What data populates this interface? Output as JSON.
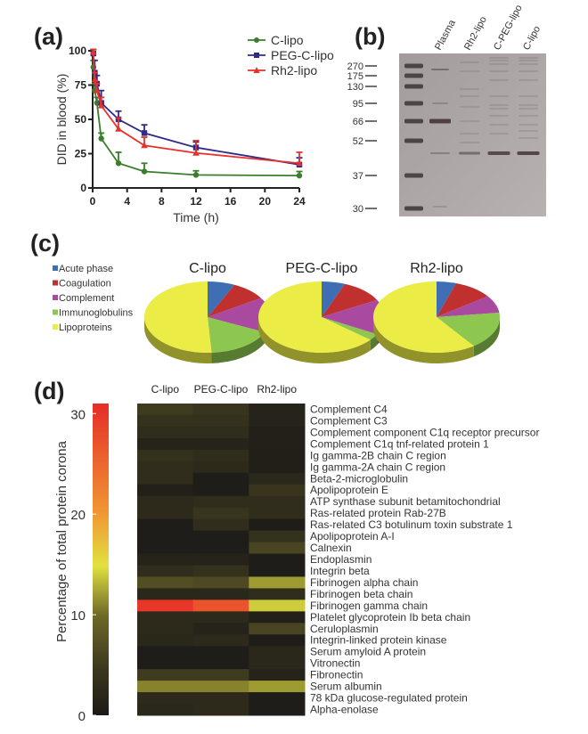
{
  "panels": {
    "a": "(a)",
    "b": "(b)",
    "c": "(c)",
    "d": "(d)"
  },
  "chart_data": [
    {
      "id": "a",
      "type": "line",
      "title": "",
      "xlabel": "Time (h)",
      "ylabel": "DID in blood (%)",
      "xlim": [
        0,
        24
      ],
      "ylim": [
        0,
        100
      ],
      "xticks": [
        0,
        4,
        8,
        12,
        16,
        20,
        24
      ],
      "yticks": [
        0,
        25,
        50,
        75,
        100
      ],
      "legend_position": "top-right",
      "x": [
        0.083,
        0.25,
        0.5,
        1,
        3,
        6,
        12,
        24
      ],
      "series": [
        {
          "name": "C-lipo",
          "color": "#3a7d2c",
          "marker": "circle",
          "values": [
            88,
            71,
            62,
            36,
            18,
            12,
            9.5,
            9
          ],
          "errors": [
            5,
            5,
            4,
            4,
            8,
            6,
            3,
            3
          ]
        },
        {
          "name": "PEG-C-lipo",
          "color": "#2e2b8a",
          "marker": "square",
          "values": [
            98,
            84,
            76,
            62,
            50,
            40,
            29.5,
            17
          ],
          "errors": [
            3,
            9,
            6,
            9,
            6,
            6,
            4,
            5
          ]
        },
        {
          "name": "Rh2-lipo",
          "color": "#e8312a",
          "marker": "triangle",
          "values": [
            99,
            79,
            71,
            60,
            43,
            31,
            25.5,
            18
          ],
          "errors": [
            2,
            5,
            5,
            6,
            8,
            6,
            9,
            8
          ]
        }
      ]
    },
    {
      "id": "b",
      "type": "gel",
      "lanes": [
        "Plasma",
        "Rh2-lipo",
        "C-PEG-lipo",
        "C-lipo"
      ],
      "marker_kda": [
        270,
        175,
        130,
        95,
        66,
        52,
        37,
        30
      ]
    },
    {
      "id": "c",
      "type": "pie",
      "legend_position": "left",
      "categories": [
        "Acute phase",
        "Coagulation",
        "Complement",
        "Immunoglobulins",
        "Lipoproteins"
      ],
      "colors": [
        "#3e6fb5",
        "#c0302e",
        "#a9499f",
        "#8dc74f",
        "#ecec46"
      ],
      "pies": [
        {
          "title": "C-lipo",
          "values": [
            7,
            9,
            16,
            17,
            51
          ]
        },
        {
          "title": "PEG-C-lipo",
          "values": [
            6,
            11,
            16,
            3,
            64
          ]
        },
        {
          "title": "Rh2-lipo",
          "values": [
            5,
            10,
            8,
            17,
            60
          ]
        }
      ]
    },
    {
      "id": "d",
      "type": "heatmap",
      "columns": [
        "C-lipo",
        "PEG-C-lipo",
        "Rh2-lipo"
      ],
      "colorbar_label": "Percentage of total protein corona",
      "colorbar_ticks": [
        0,
        10,
        20,
        30
      ],
      "zlim": [
        0,
        31
      ],
      "rows": [
        {
          "name": "Complement C4",
          "values": [
            5,
            4,
            1.5
          ]
        },
        {
          "name": "Complement C3",
          "values": [
            3.5,
            3.5,
            1.5
          ]
        },
        {
          "name": "Complement component C1q receptor precursor",
          "values": [
            3,
            3,
            1
          ]
        },
        {
          "name": "Complement C1q tnf-related protein 1",
          "values": [
            1.5,
            1.5,
            1
          ]
        },
        {
          "name": "Ig gamma-2B chain C region",
          "values": [
            3.5,
            3,
            0.8
          ]
        },
        {
          "name": "Ig gamma-2A chain C region",
          "values": [
            3,
            2.5,
            0.8
          ]
        },
        {
          "name": "Beta-2-microglobulin",
          "values": [
            3,
            0.5,
            2
          ]
        },
        {
          "name": "Apolipoprotein E",
          "values": [
            1,
            0.5,
            4
          ]
        },
        {
          "name": "ATP synthase subunit betamitochondrial",
          "values": [
            2.5,
            3,
            3
          ]
        },
        {
          "name": "Ras-related protein Rab-27B",
          "values": [
            2.5,
            4,
            3
          ]
        },
        {
          "name": "Ras-related C3 botulinum toxin substrate 1",
          "values": [
            0.5,
            3,
            0.5
          ]
        },
        {
          "name": "Apolipoprotein A-I",
          "values": [
            0.5,
            0.5,
            3.5
          ]
        },
        {
          "name": "Calnexin",
          "values": [
            0.5,
            0.5,
            6
          ]
        },
        {
          "name": "Endoplasmin",
          "values": [
            1.5,
            1.5,
            0.5
          ]
        },
        {
          "name": "Integrin beta",
          "values": [
            3,
            3.5,
            0.5
          ]
        },
        {
          "name": "Fibrinogen alpha chain",
          "values": [
            7,
            6.5,
            12
          ]
        },
        {
          "name": "Fibrinogen beta chain",
          "values": [
            2,
            2,
            3
          ]
        },
        {
          "name": "Fibrinogen gamma chain",
          "values": [
            30,
            27,
            14
          ]
        },
        {
          "name": "Platelet glycoprotein Ib beta chain",
          "values": [
            2.5,
            2.5,
            1
          ]
        },
        {
          "name": "Ceruloplasmin",
          "values": [
            2.5,
            1.5,
            6
          ]
        },
        {
          "name": "Integrin-linked protein kinase",
          "values": [
            2,
            2.5,
            0.5
          ]
        },
        {
          "name": "Serum amyloid A protein",
          "values": [
            0.5,
            0.5,
            2
          ]
        },
        {
          "name": "Vitronectin",
          "values": [
            0.5,
            0.5,
            2
          ]
        },
        {
          "name": "Fibronectin",
          "values": [
            5,
            5,
            1.5
          ]
        },
        {
          "name": "Serum albumin",
          "values": [
            11,
            11,
            12
          ]
        },
        {
          "name": "78 kDa glucose-regulated protein",
          "values": [
            2.5,
            2.5,
            0.5
          ]
        },
        {
          "name": "Alpha-enolase",
          "values": [
            2,
            2.5,
            0.5
          ]
        }
      ]
    }
  ]
}
